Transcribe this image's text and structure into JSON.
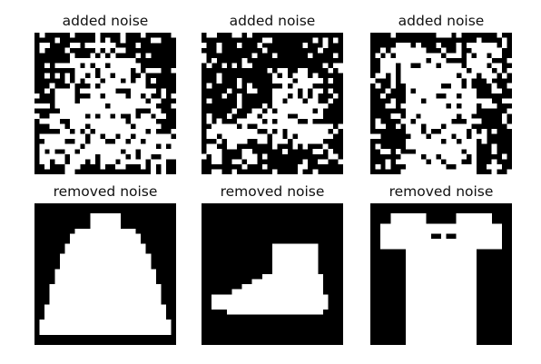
{
  "panels": [
    {
      "title": "added noise",
      "kind": "noisy",
      "shape": "dress"
    },
    {
      "title": "added noise",
      "kind": "noisy",
      "shape": "boot"
    },
    {
      "title": "added noise",
      "kind": "noisy",
      "shape": "tshirt"
    },
    {
      "title": "removed noise",
      "kind": "clean",
      "shape": "dress"
    },
    {
      "title": "removed noise",
      "kind": "clean",
      "shape": "boot"
    },
    {
      "title": "removed noise",
      "kind": "clean",
      "shape": "tshirt"
    }
  ],
  "colors": {
    "foreground": "#ffffff",
    "background": "#000000"
  }
}
